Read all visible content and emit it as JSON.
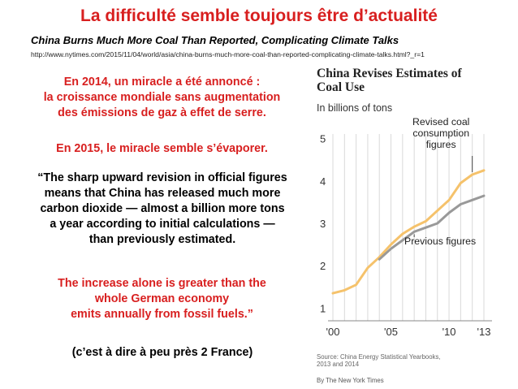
{
  "title": "La difficulté semble toujours être d’actualité",
  "subtitle": "China Burns Much More Coal Than Reported, Complicating Climate Talks",
  "url": "http://www.nytimes.com/2015/11/04/world/asia/china-burns-much-more-coal-than-reported-complicating-climate-talks.html?_r=1",
  "intro": {
    "lines": [
      "En 2014, un miracle a été annoncé :",
      "la croissance mondiale sans augmentation",
      "des émissions de gaz à effet de serre."
    ],
    "evaporate": "En 2015, le miracle semble s’évaporer."
  },
  "quote": {
    "lines": [
      "“The sharp upward revision in official figures",
      "means that China has released much more",
      "carbon dioxide — almost a billion more tons",
      "a year according to initial calculations —",
      "than previously estimated."
    ],
    "red_lines": [
      "The increase alone is greater than the",
      "whole German economy",
      "emits annually from fossil fuels.”"
    ],
    "note": "(c’est à dire à peu près 2 France)"
  },
  "colors": {
    "accent_red": "#d81f1f",
    "revised": "#f5c26b",
    "previous": "#999999",
    "grid": "#d9d9d9"
  },
  "chart_data": {
    "type": "line",
    "title_lines": [
      "China Revises Estimates of",
      "Coal Use"
    ],
    "ylabel": "In billions of tons",
    "ylim": [
      0.7,
      5.3
    ],
    "xlim": [
      2000,
      2013.7
    ],
    "yticks": [
      1,
      2,
      3,
      4,
      5
    ],
    "xticks": [
      {
        "value": 2000,
        "label": "'00"
      },
      {
        "value": 2005,
        "label": "'05"
      },
      {
        "value": 2010,
        "label": "'10"
      },
      {
        "value": 2013,
        "label": "'13"
      }
    ],
    "grid": true,
    "series": [
      {
        "name": "Revised coal consumption figures",
        "label_lines": [
          "Revised coal",
          "consumption",
          "figures"
        ],
        "color": "#f5c26b",
        "x": [
          2000,
          2001,
          2002,
          2003,
          2004,
          2005,
          2006,
          2007,
          2008,
          2009,
          2010,
          2011,
          2012,
          2013
        ],
        "y": [
          1.35,
          1.42,
          1.55,
          1.95,
          2.2,
          2.5,
          2.75,
          2.92,
          3.05,
          3.3,
          3.55,
          3.95,
          4.15,
          4.25
        ]
      },
      {
        "name": "Previous figures",
        "label_lines": [
          "Previous figures"
        ],
        "color": "#999999",
        "x": [
          2004,
          2005,
          2006,
          2007,
          2008,
          2009,
          2010,
          2011,
          2012,
          2013
        ],
        "y": [
          2.15,
          2.4,
          2.6,
          2.8,
          2.9,
          3.0,
          3.25,
          3.45,
          3.55,
          3.65
        ]
      }
    ],
    "source_lines": [
      "Source: China Energy Statistical Yearbooks,",
      "2013 and 2014"
    ],
    "credit": "By The New York Times"
  }
}
